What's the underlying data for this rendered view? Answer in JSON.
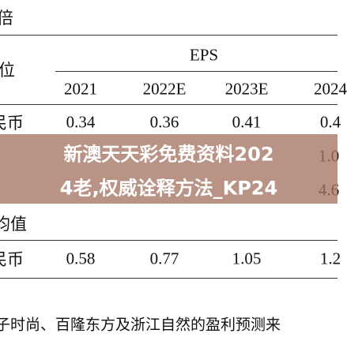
{
  "header": {
    "top_label": "倍",
    "unit_label": "位",
    "group": "EPS"
  },
  "table": {
    "columns": [
      "2021",
      "2022E",
      "2023E",
      "2024"
    ],
    "rows": [
      [
        "民币",
        "0.34",
        "0.36",
        "0.41",
        "0.4"
      ]
    ],
    "hidden_rows_right": [
      "1.0",
      "4.6"
    ],
    "section": "均值",
    "section_rows": [
      [
        "民币",
        "0.58",
        "0.77",
        "1.05",
        "1.2"
      ]
    ]
  },
  "footnote": "子时尚、百隆东方及浙江自然的盈利预测来",
  "overlay": {
    "lines": [
      "新澳天天彩免费资料202",
      "4老,权威诠释方法_KP24"
    ]
  }
}
